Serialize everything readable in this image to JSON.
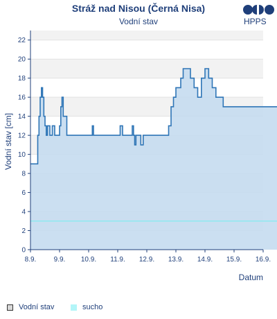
{
  "header": {
    "title": "Stráž nad Nisou (Černá Nisa)",
    "subtitle": "Vodní stav",
    "logo_text": "HPPS"
  },
  "legend": [
    {
      "label": "Vodní stav",
      "swatch": "#d9d9d9",
      "border": "#333333"
    },
    {
      "label": "sucho",
      "swatch": "#b3f5f8",
      "border": "#b3f5f8"
    }
  ],
  "colors": {
    "line": "#2e75b6",
    "fill": "#c5dcf0",
    "band": "#f2f2f2",
    "threshold": "#8ee9f0",
    "axis": "#1f3f7a",
    "text": "#1f3f7a"
  },
  "chart_data": {
    "type": "area",
    "xlabel": "Datum",
    "ylabel": "Vodní stav [cm]",
    "ylim": [
      0,
      23
    ],
    "xlim": [
      "2024-09-08",
      "2024-09-16"
    ],
    "x_tick_labels": [
      "8.9.",
      "9.9.",
      "10.9.",
      "11.9.",
      "12.9.",
      "13.9.",
      "14.9.",
      "15.9.",
      "16.9."
    ],
    "y_ticks": [
      0,
      2,
      4,
      6,
      8,
      10,
      12,
      14,
      16,
      18,
      20,
      22
    ],
    "threshold": {
      "name": "sucho",
      "value": 3
    },
    "series": [
      {
        "name": "Vodní stav",
        "x": [
          "2024-09-08 00:00",
          "2024-09-08 05:00",
          "2024-09-08 06:00",
          "2024-09-08 07:00",
          "2024-09-08 08:00",
          "2024-09-08 09:00",
          "2024-09-08 10:00",
          "2024-09-08 11:00",
          "2024-09-08 12:00",
          "2024-09-08 13:00",
          "2024-09-08 14:00",
          "2024-09-08 16:00",
          "2024-09-08 18:00",
          "2024-09-08 20:00",
          "2024-09-08 22:00",
          "2024-09-09 00:00",
          "2024-09-09 01:00",
          "2024-09-09 02:00",
          "2024-09-09 03:00",
          "2024-09-09 06:00",
          "2024-09-09 12:00",
          "2024-09-09 18:00",
          "2024-09-10 00:00",
          "2024-09-10 03:00",
          "2024-09-10 04:00",
          "2024-09-10 12:00",
          "2024-09-10 15:00",
          "2024-09-10 16:00",
          "2024-09-10 18:00",
          "2024-09-10 21:00",
          "2024-09-10 23:00",
          "2024-09-11 00:00",
          "2024-09-11 02:00",
          "2024-09-11 04:00",
          "2024-09-11 06:00",
          "2024-09-11 08:00",
          "2024-09-11 10:00",
          "2024-09-11 12:00",
          "2024-09-11 13:00",
          "2024-09-11 14:00",
          "2024-09-11 15:00",
          "2024-09-11 17:00",
          "2024-09-11 19:00",
          "2024-09-11 21:00",
          "2024-09-11 23:00",
          "2024-09-12 00:00",
          "2024-09-12 02:00",
          "2024-09-12 04:00",
          "2024-09-12 06:00",
          "2024-09-12 08:00",
          "2024-09-12 10:00",
          "2024-09-12 12:00",
          "2024-09-12 14:00",
          "2024-09-12 16:00",
          "2024-09-12 18:00",
          "2024-09-12 20:00",
          "2024-09-12 22:00",
          "2024-09-13 00:00",
          "2024-09-13 02:00",
          "2024-09-13 04:00",
          "2024-09-13 06:00",
          "2024-09-13 09:00",
          "2024-09-13 12:00",
          "2024-09-13 15:00",
          "2024-09-13 18:00",
          "2024-09-13 21:00",
          "2024-09-14 00:00",
          "2024-09-14 03:00",
          "2024-09-14 06:00",
          "2024-09-14 09:00",
          "2024-09-14 12:00",
          "2024-09-14 15:00",
          "2024-09-14 18:00",
          "2024-09-14 21:00",
          "2024-09-15 00:00",
          "2024-09-15 03:00",
          "2024-09-15 06:00",
          "2024-09-15 09:00",
          "2024-09-15 12:00",
          "2024-09-15 15:00",
          "2024-09-15 18:00",
          "2024-09-15 21:00",
          "2024-09-16 00:00",
          "2024-09-16 03:00",
          "2024-09-16 06:00",
          "2024-09-16 09:00",
          "2024-09-16 12:00",
          "2024-09-16 15:00"
        ],
        "values": [
          9,
          9,
          12,
          14,
          16,
          17,
          16,
          14,
          13,
          12,
          13,
          12,
          13,
          12,
          12,
          13,
          15,
          16,
          14,
          12,
          12,
          12,
          12,
          13,
          12,
          12,
          12,
          12,
          12,
          12,
          12,
          12,
          13,
          12,
          12,
          12,
          12,
          13,
          12,
          11,
          12,
          12,
          11,
          12,
          12,
          12,
          12,
          12,
          12,
          12,
          12,
          12,
          12,
          12,
          13,
          15,
          16,
          17,
          17,
          18,
          19,
          19,
          18,
          17,
          16,
          18,
          19,
          18,
          17,
          16,
          16,
          15,
          15,
          15,
          15,
          15,
          15,
          15,
          15,
          15,
          15,
          15,
          15,
          15,
          15,
          15,
          15,
          15
        ]
      }
    ]
  }
}
